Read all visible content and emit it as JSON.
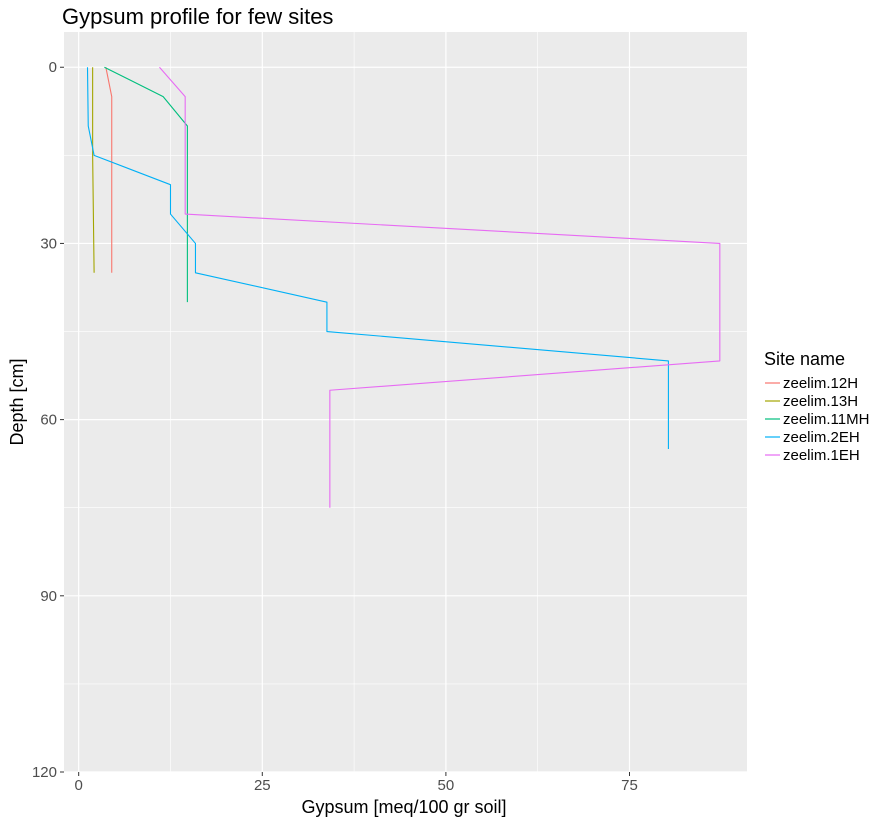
{
  "chart_data": {
    "type": "line",
    "title": "Gypsum profile for few sites",
    "xlabel": "Gypsum [meq/100 gr soil]",
    "ylabel": "Depth [cm]",
    "xlim": [
      -2,
      91
    ],
    "ylim": [
      120,
      -6
    ],
    "y_reversed": true,
    "x_ticks": [
      0,
      25,
      50,
      75
    ],
    "y_ticks": [
      0,
      30,
      60,
      90,
      120
    ],
    "grid": true,
    "legend_title": "Site name",
    "legend_position": "right",
    "series": [
      {
        "name": "zeelim.12H",
        "color": "#F8766D",
        "points": [
          [
            3.7,
            0
          ],
          [
            4.5,
            5
          ],
          [
            4.5,
            35
          ]
        ]
      },
      {
        "name": "zeelim.13H",
        "color": "#A3A500",
        "points": [
          [
            1.9,
            0
          ],
          [
            1.9,
            15
          ],
          [
            2.1,
            35
          ]
        ]
      },
      {
        "name": "zeelim.11MH",
        "color": "#00BF7D",
        "points": [
          [
            3.5,
            0
          ],
          [
            11.5,
            5
          ],
          [
            14.8,
            10
          ],
          [
            14.8,
            40
          ]
        ]
      },
      {
        "name": "zeelim.2EH",
        "color": "#00B0F6",
        "points": [
          [
            1.2,
            0
          ],
          [
            1.3,
            10
          ],
          [
            2.1,
            15
          ],
          [
            12.5,
            20
          ],
          [
            12.5,
            25
          ],
          [
            15.9,
            30
          ],
          [
            15.9,
            35
          ],
          [
            33.8,
            40
          ],
          [
            33.8,
            45
          ],
          [
            80.3,
            50
          ],
          [
            80.3,
            65
          ]
        ]
      },
      {
        "name": "zeelim.1EH",
        "color": "#E76BF3",
        "points": [
          [
            11,
            0
          ],
          [
            14.5,
            5
          ],
          [
            14.5,
            25
          ],
          [
            87.3,
            30
          ],
          [
            87.3,
            50
          ],
          [
            34.2,
            55
          ],
          [
            34.2,
            75
          ]
        ]
      }
    ]
  }
}
